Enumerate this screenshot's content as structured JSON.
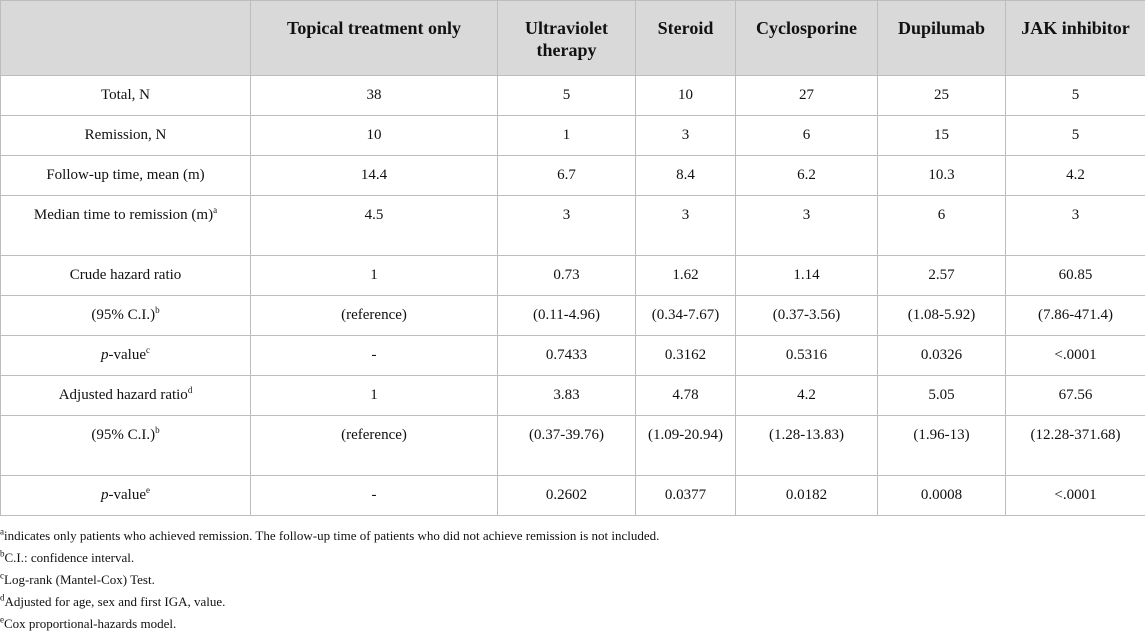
{
  "table": {
    "headers": [
      "",
      "Topical treatment only",
      "Ultraviolet therapy",
      "Steroid",
      "Cyclosporine",
      "Dupilumab",
      "JAK inhibitor"
    ],
    "rows": [
      {
        "label": "Total, N",
        "sup": "",
        "values": [
          "38",
          "5",
          "10",
          "27",
          "25",
          "5"
        ]
      },
      {
        "label": "Remission, N",
        "sup": "",
        "values": [
          "10",
          "1",
          "3",
          "6",
          "15",
          "5"
        ]
      },
      {
        "label": "Follow-up time, mean (m)",
        "sup": "",
        "values": [
          "14.4",
          "6.7",
          "8.4",
          "6.2",
          "10.3",
          "4.2"
        ]
      },
      {
        "label": "Median time to remission (m)",
        "sup": "a",
        "values": [
          "4.5",
          "3",
          "3",
          "3",
          "6",
          "3"
        ]
      },
      {
        "label": "Crude hazard ratio",
        "sup": "",
        "values": [
          "1",
          "0.73",
          "1.62",
          "1.14",
          "2.57",
          "60.85"
        ]
      },
      {
        "label": "(95% C.I.)",
        "sup": "b",
        "values": [
          "(reference)",
          "(0.11-4.96)",
          "(0.34-7.67)",
          "(0.37-3.56)",
          "(1.08-5.92)",
          "(7.86-471.4)"
        ]
      },
      {
        "label_italic": "p",
        "label": "-value",
        "sup": "c",
        "values": [
          "-",
          "0.7433",
          "0.3162",
          "0.5316",
          "0.0326",
          "<.0001"
        ]
      },
      {
        "label": "Adjusted hazard ratio",
        "sup": "d",
        "values": [
          "1",
          "3.83",
          "4.78",
          "4.2",
          "5.05",
          "67.56"
        ]
      },
      {
        "label": "(95% C.I.)",
        "sup": "b",
        "values": [
          "(reference)",
          "(0.37-39.76)",
          "(1.09-20.94)",
          "(1.28-13.83)",
          "(1.96-13)",
          "(12.28-371.68)"
        ]
      },
      {
        "label_italic": "p",
        "label": "-value",
        "sup": "e",
        "values": [
          "-",
          "0.2602",
          "0.0377",
          "0.0182",
          "0.0008",
          "<.0001"
        ]
      }
    ]
  },
  "footnotes": [
    {
      "mark": "a",
      "text": "indicates only patients who achieved remission. The follow-up time of patients who did not achieve remission is not included."
    },
    {
      "mark": "b",
      "text": "C.I.: confidence interval."
    },
    {
      "mark": "c",
      "text": "Log-rank (Mantel-Cox) Test."
    },
    {
      "mark": "d",
      "text": "Adjusted for age, sex and first IGA, value."
    },
    {
      "mark": "e",
      "text": "Cox proportional-hazards model."
    }
  ]
}
